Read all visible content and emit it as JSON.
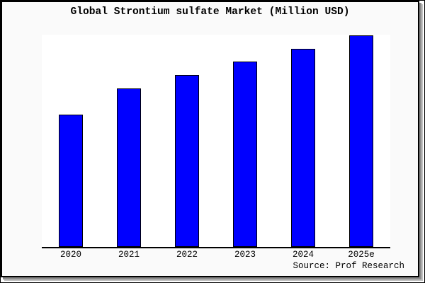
{
  "frame": {
    "border_color": "#000000",
    "page_bg": "#ffffff"
  },
  "card": {
    "bg": "#fafafa",
    "border_color": "#000000",
    "shadow_color": "#8c8c8c"
  },
  "chart_data": {
    "type": "bar",
    "title": "Global Strontium sulfate Market (Million USD)",
    "categories": [
      "2020",
      "2021",
      "2022",
      "2023",
      "2024",
      "2025e"
    ],
    "values": [
      62.5,
      75,
      81.25,
      87.5,
      93.75,
      100
    ],
    "values_note": "Relative bar heights as % of tallest bar (2025e); chart displays no y-axis, tick values, gridlines, or data labels",
    "xlabel": "",
    "ylabel": "",
    "legend": "none",
    "grid": false,
    "bar_color": "#0000ff",
    "bar_edge_color": "#000000",
    "plot_bg": "#ffffff",
    "source_annotation": "Source: Prof Research"
  }
}
